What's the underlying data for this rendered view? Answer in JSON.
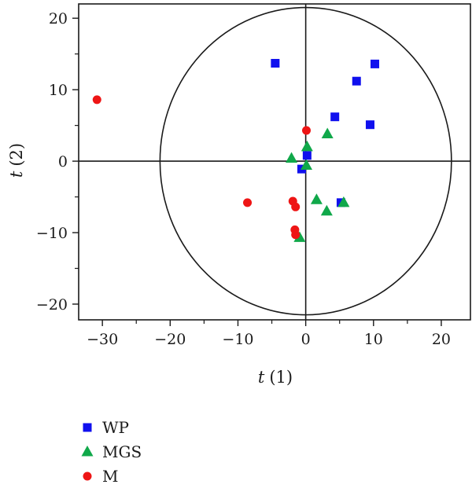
{
  "chart_data": {
    "type": "scatter",
    "xlabel_var": "t",
    "xlabel_idx": "(1)",
    "ylabel_var": "t",
    "ylabel_idx": "(2)",
    "xlim": [
      -33.5,
      24.3
    ],
    "ylim": [
      -22.2,
      22.0
    ],
    "x_ticks": [
      -30,
      -20,
      -10,
      0,
      10,
      20
    ],
    "x_tick_labels": [
      "−30",
      "−20",
      "−10",
      "0",
      "10",
      "20"
    ],
    "y_ticks": [
      -20,
      -10,
      0,
      10,
      20
    ],
    "y_tick_labels": [
      "−20",
      "−10",
      "0",
      "10",
      "20"
    ],
    "x_minor_ticks": [
      -25,
      -15,
      -5,
      5,
      15
    ],
    "y_minor_ticks": [
      -15,
      -5,
      5,
      15
    ],
    "circle_radius": 21.5,
    "reference_lines": {
      "x": 0,
      "y": 0
    },
    "legend_placement": "below-left",
    "series": [
      {
        "name": "WP",
        "marker": "square",
        "color": "#1010ee",
        "points": [
          {
            "x": -4.5,
            "y": 13.7
          },
          {
            "x": 10.2,
            "y": 13.6
          },
          {
            "x": 7.5,
            "y": 11.2
          },
          {
            "x": 4.3,
            "y": 6.2
          },
          {
            "x": 9.5,
            "y": 5.1
          },
          {
            "x": 0.2,
            "y": 0.8
          },
          {
            "x": -0.6,
            "y": -1.1
          },
          {
            "x": 5.2,
            "y": -5.8
          }
        ]
      },
      {
        "name": "MGS",
        "marker": "triangle",
        "color": "#10a84a",
        "points": [
          {
            "x": 3.2,
            "y": 3.8
          },
          {
            "x": 0.2,
            "y": 2.0
          },
          {
            "x": -2.1,
            "y": 0.4
          },
          {
            "x": 0.1,
            "y": -0.6
          },
          {
            "x": 1.6,
            "y": -5.4
          },
          {
            "x": 5.6,
            "y": -5.8
          },
          {
            "x": 3.1,
            "y": -7.0
          },
          {
            "x": -0.9,
            "y": -10.7
          }
        ]
      },
      {
        "name": "M",
        "marker": "circle",
        "color": "#ee1515",
        "points": [
          {
            "x": -30.8,
            "y": 8.6
          },
          {
            "x": 0.1,
            "y": 4.3
          },
          {
            "x": -8.6,
            "y": -5.8
          },
          {
            "x": -1.9,
            "y": -5.6
          },
          {
            "x": -1.5,
            "y": -6.4
          },
          {
            "x": -1.6,
            "y": -9.6
          },
          {
            "x": -1.5,
            "y": -10.3
          }
        ]
      }
    ]
  }
}
